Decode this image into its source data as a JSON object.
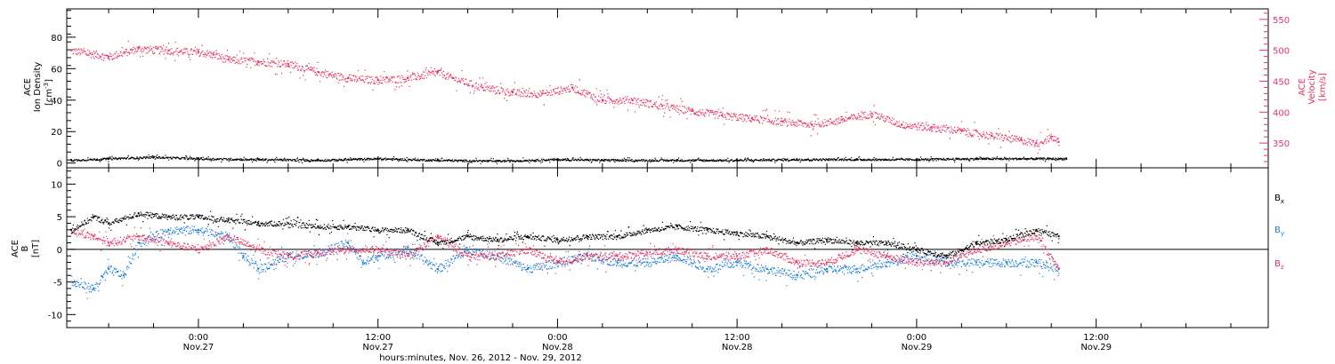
{
  "colors": {
    "black": "#000000",
    "pink": "#e8315f",
    "blue": "#1a7fd8",
    "axis": "#000000"
  },
  "chart_data": [
    {
      "type": "scatter",
      "panel": "top",
      "ylabel_left": [
        "ACE",
        "Ion Density",
        "[cm",
        "-3",
        "]"
      ],
      "ylabel_right": [
        "ACE",
        "Velocity",
        "[km/s]"
      ],
      "ylim_left": [
        -3,
        98
      ],
      "ylim_right": [
        310,
        567
      ],
      "yticks_left": [
        0,
        20,
        40,
        60,
        80
      ],
      "yticks_right": [
        350,
        400,
        450,
        500,
        550
      ],
      "series": [
        {
          "name": "Ion Density",
          "axis": "left",
          "color": "black",
          "points": [
            [
              -8.5,
              2
            ],
            [
              -6,
              3
            ],
            [
              -3,
              4
            ],
            [
              0,
              3
            ],
            [
              4,
              2.5
            ],
            [
              8,
              2
            ],
            [
              12,
              3
            ],
            [
              16,
              2
            ],
            [
              20,
              1.5
            ],
            [
              24,
              2.5
            ],
            [
              28,
              2
            ],
            [
              32,
              2
            ],
            [
              36,
              2
            ],
            [
              40,
              2.5
            ],
            [
              44,
              2.5
            ],
            [
              48,
              2.5
            ],
            [
              52,
              3
            ],
            [
              56,
              3
            ],
            [
              58,
              3
            ]
          ]
        },
        {
          "name": "Velocity",
          "axis": "right",
          "color": "pink",
          "points": [
            [
              -8.5,
              500
            ],
            [
              -6,
              490
            ],
            [
              -4,
              503
            ],
            [
              -2,
              500
            ],
            [
              0,
              497
            ],
            [
              1,
              493
            ],
            [
              2,
              485
            ],
            [
              4,
              482
            ],
            [
              6,
              478
            ],
            [
              8,
              465
            ],
            [
              10,
              455
            ],
            [
              12,
              452
            ],
            [
              14,
              455
            ],
            [
              16,
              465
            ],
            [
              17,
              455
            ],
            [
              19,
              440
            ],
            [
              21,
              432
            ],
            [
              23,
              430
            ],
            [
              25,
              440
            ],
            [
              27,
              420
            ],
            [
              29,
              420
            ],
            [
              31,
              410
            ],
            [
              33,
              402
            ],
            [
              35,
              395
            ],
            [
              37,
              390
            ],
            [
              39,
              385
            ],
            [
              41,
              380
            ],
            [
              43,
              388
            ],
            [
              45,
              398
            ],
            [
              47,
              380
            ],
            [
              49,
              376
            ],
            [
              51,
              370
            ],
            [
              53,
              362
            ],
            [
              55,
              355
            ],
            [
              56,
              350
            ],
            [
              57,
              360
            ],
            [
              57.5,
              352
            ]
          ]
        }
      ]
    },
    {
      "type": "scatter",
      "panel": "bottom",
      "ylabel": [
        "ACE",
        "B",
        "[nT]"
      ],
      "ylim": [
        -12,
        12.5
      ],
      "yticks": [
        -10,
        -5,
        0,
        5,
        10
      ],
      "legend": [
        "B",
        "B",
        "B"
      ],
      "legend_sub": [
        "x",
        "y",
        "z"
      ],
      "series": [
        {
          "name": "Bx",
          "color": "black",
          "points": [
            [
              -8.5,
              3
            ],
            [
              -7,
              5
            ],
            [
              -6,
              4
            ],
            [
              -4,
              5.5
            ],
            [
              -2,
              5
            ],
            [
              0,
              5
            ],
            [
              2,
              4.5
            ],
            [
              4,
              4
            ],
            [
              6,
              4
            ],
            [
              8,
              3.5
            ],
            [
              10,
              3.5
            ],
            [
              12,
              3
            ],
            [
              14,
              3
            ],
            [
              16,
              1
            ],
            [
              18,
              2
            ],
            [
              20,
              1.5
            ],
            [
              22,
              2
            ],
            [
              24,
              1.5
            ],
            [
              26,
              2
            ],
            [
              28,
              2
            ],
            [
              30,
              3
            ],
            [
              32,
              3.5
            ],
            [
              34,
              3
            ],
            [
              36,
              2.5
            ],
            [
              38,
              2
            ],
            [
              40,
              1
            ],
            [
              42,
              1.5
            ],
            [
              44,
              1
            ],
            [
              46,
              1
            ],
            [
              48,
              0
            ],
            [
              50,
              -1
            ],
            [
              52,
              1
            ],
            [
              54,
              1.5
            ],
            [
              56,
              3
            ],
            [
              57.5,
              2
            ]
          ]
        },
        {
          "name": "By",
          "color": "blue",
          "points": [
            [
              -8.5,
              -5
            ],
            [
              -7,
              -6
            ],
            [
              -6,
              -3
            ],
            [
              -5,
              -4
            ],
            [
              -4,
              1
            ],
            [
              -2,
              3
            ],
            [
              0,
              3
            ],
            [
              2,
              2
            ],
            [
              3,
              -1
            ],
            [
              4,
              -3
            ],
            [
              6,
              -1
            ],
            [
              8,
              -0.5
            ],
            [
              10,
              1
            ],
            [
              11,
              -2
            ],
            [
              12,
              -1
            ],
            [
              14,
              0
            ],
            [
              16,
              -3
            ],
            [
              18,
              0
            ],
            [
              20,
              -1
            ],
            [
              22,
              -3
            ],
            [
              24,
              -2
            ],
            [
              26,
              -1
            ],
            [
              28,
              -2
            ],
            [
              30,
              -2
            ],
            [
              32,
              -1
            ],
            [
              34,
              -3
            ],
            [
              36,
              -2
            ],
            [
              38,
              -3
            ],
            [
              40,
              -4
            ],
            [
              42,
              -3
            ],
            [
              44,
              -3
            ],
            [
              46,
              -2
            ],
            [
              48,
              -1
            ],
            [
              50,
              -2
            ],
            [
              52,
              -2
            ],
            [
              54,
              -2
            ],
            [
              56,
              -2
            ],
            [
              57.5,
              -3
            ]
          ]
        },
        {
          "name": "Bz",
          "color": "pink",
          "points": [
            [
              -8.5,
              3
            ],
            [
              -7,
              2
            ],
            [
              -6,
              1
            ],
            [
              -4,
              2
            ],
            [
              -2,
              1
            ],
            [
              0,
              0
            ],
            [
              2,
              2
            ],
            [
              4,
              0
            ],
            [
              6,
              -1
            ],
            [
              8,
              -0.5
            ],
            [
              10,
              0
            ],
            [
              12,
              0
            ],
            [
              14,
              -1
            ],
            [
              16,
              2
            ],
            [
              18,
              -1
            ],
            [
              20,
              -1
            ],
            [
              22,
              0
            ],
            [
              24,
              -2
            ],
            [
              26,
              -1
            ],
            [
              28,
              -1
            ],
            [
              30,
              -0.5
            ],
            [
              32,
              0
            ],
            [
              34,
              -1
            ],
            [
              36,
              -1
            ],
            [
              38,
              0
            ],
            [
              40,
              -2
            ],
            [
              42,
              -2
            ],
            [
              44,
              0
            ],
            [
              46,
              -1
            ],
            [
              48,
              -2
            ],
            [
              50,
              -2
            ],
            [
              52,
              0
            ],
            [
              54,
              1
            ],
            [
              56,
              2
            ],
            [
              57.5,
              -3
            ]
          ]
        }
      ]
    }
  ],
  "xaxis": {
    "range_hours": [
      -8.8,
      71.5
    ],
    "ticks": [
      {
        "hour": 0,
        "time": "0:00",
        "date": "Nov.27"
      },
      {
        "hour": 12,
        "time": "12:00",
        "date": "Nov.27"
      },
      {
        "hour": 24,
        "time": "0:00",
        "date": "Nov.28"
      },
      {
        "hour": 36,
        "time": "12:00",
        "date": "Nov.28"
      },
      {
        "hour": 48,
        "time": "0:00",
        "date": "Nov.29"
      },
      {
        "hour": 60,
        "time": "12:00",
        "date": "Nov.29"
      }
    ],
    "label": "hours:minutes, Nov. 26, 2012 - Nov. 29, 2012"
  }
}
